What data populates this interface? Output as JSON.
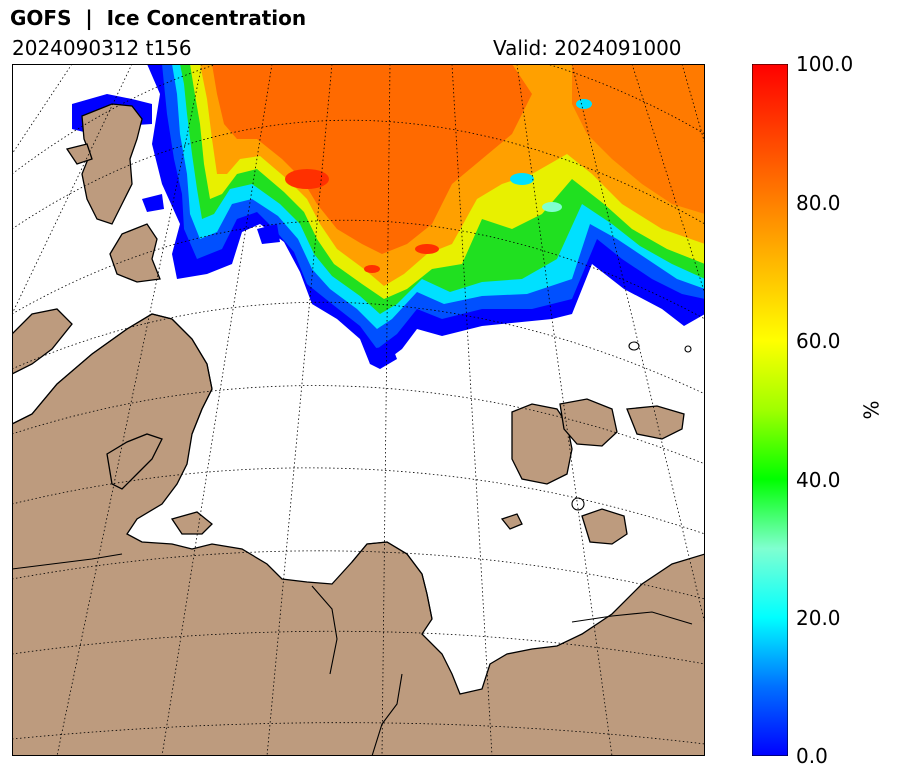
{
  "header": {
    "title": "GOFS  |  Ice Concentration",
    "run": "2024090312 t156",
    "valid": "Valid: 2024091000"
  },
  "colorbar": {
    "label": "%",
    "ticks": [
      "100.0",
      "80.0",
      "60.0",
      "40.0",
      "20.0",
      "0.0"
    ],
    "range": [
      0,
      100
    ],
    "colors": [
      "#0000ff",
      "#0070ff",
      "#00ffff",
      "#80ffd0",
      "#00ff00",
      "#a0ff00",
      "#ffff00",
      "#ffc000",
      "#ff8000",
      "#ff4000",
      "#ff0000"
    ]
  },
  "map": {
    "land_color": "#bd9b7e",
    "ocean_color": "#ffffff",
    "gridline_style": "dotted"
  }
}
